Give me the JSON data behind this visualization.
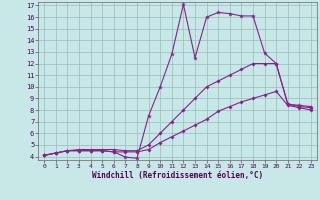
{
  "bg_color": "#c8e8e8",
  "line_color": "#882288",
  "grid_color": "#99bbbb",
  "xlabel": "Windchill (Refroidissement éolien,°C)",
  "x_min": -0.5,
  "x_max": 23.5,
  "y_min": 3.7,
  "y_max": 17.3,
  "yticks": [
    4,
    5,
    6,
    7,
    8,
    9,
    10,
    11,
    12,
    13,
    14,
    15,
    16,
    17
  ],
  "xticks": [
    0,
    1,
    2,
    3,
    4,
    5,
    6,
    7,
    8,
    9,
    10,
    11,
    12,
    13,
    14,
    15,
    16,
    17,
    18,
    19,
    20,
    21,
    22,
    23
  ],
  "line1_x": [
    0,
    1,
    2,
    3,
    4,
    5,
    6,
    7,
    8,
    9,
    10,
    11,
    12,
    13,
    14,
    15,
    16,
    17,
    18,
    19,
    20,
    21,
    22,
    23
  ],
  "line1_y": [
    4.1,
    4.3,
    4.5,
    4.5,
    4.5,
    4.5,
    4.4,
    3.95,
    3.85,
    7.5,
    10.0,
    12.8,
    17.1,
    12.5,
    16.0,
    16.4,
    16.3,
    16.1,
    16.1,
    12.9,
    12.0,
    8.5,
    8.4,
    8.3
  ],
  "line2_x": [
    0,
    1,
    2,
    3,
    4,
    5,
    6,
    7,
    8,
    9,
    10,
    11,
    12,
    13,
    14,
    15,
    16,
    17,
    18,
    19,
    20,
    21,
    22,
    23
  ],
  "line2_y": [
    4.1,
    4.3,
    4.5,
    4.6,
    4.6,
    4.6,
    4.6,
    4.5,
    4.5,
    5.0,
    6.0,
    7.0,
    8.0,
    9.0,
    10.0,
    10.5,
    11.0,
    11.5,
    12.0,
    12.0,
    12.0,
    8.5,
    8.3,
    8.2
  ],
  "line3_x": [
    0,
    1,
    2,
    3,
    4,
    5,
    6,
    7,
    8,
    9,
    10,
    11,
    12,
    13,
    14,
    15,
    16,
    17,
    18,
    19,
    20,
    21,
    22,
    23
  ],
  "line3_y": [
    4.1,
    4.3,
    4.5,
    4.5,
    4.5,
    4.5,
    4.4,
    4.4,
    4.4,
    4.6,
    5.2,
    5.7,
    6.2,
    6.7,
    7.2,
    7.9,
    8.3,
    8.7,
    9.0,
    9.3,
    9.6,
    8.4,
    8.2,
    8.0
  ]
}
